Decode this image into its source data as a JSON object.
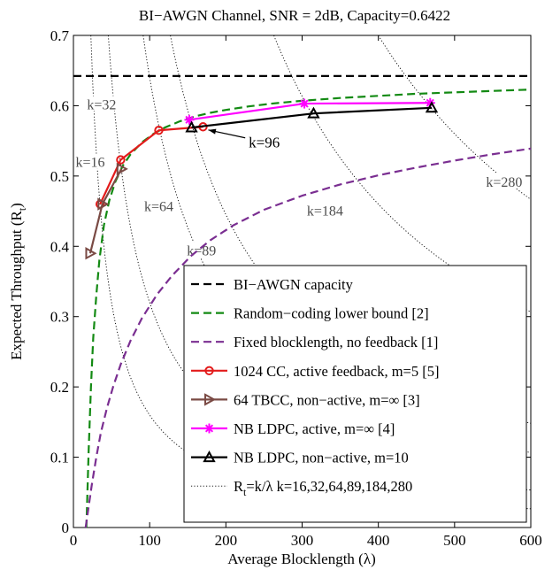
{
  "chart_data": {
    "type": "line",
    "title": "BI−AWGN Channel, SNR = 2dB, Capacity=0.6422",
    "xlabel": "Average Blocklength (λ)",
    "ylabel_main": "Expected Throughput (R",
    "ylabel_sub": "t",
    "ylabel_close": ")",
    "xlim": [
      0,
      600
    ],
    "ylim": [
      0,
      0.7
    ],
    "xticks": [
      0,
      100,
      200,
      300,
      400,
      500,
      600
    ],
    "yticks": [
      0,
      0.1,
      0.2,
      0.3,
      0.4,
      0.5,
      0.6,
      0.7
    ],
    "xtick_labels": [
      "0",
      "100",
      "200",
      "300",
      "400",
      "500",
      "600"
    ],
    "ytick_labels": [
      "0",
      "0.1",
      "0.2",
      "0.3",
      "0.4",
      "0.5",
      "0.6",
      "0.7"
    ],
    "grid": false,
    "legend_position": "bottom-right",
    "capacity": 0.6422,
    "k_curves": {
      "values": [
        16,
        32,
        64,
        89,
        184,
        280
      ],
      "labels": [
        {
          "text": "k=16",
          "x": 22,
          "y": 0.518
        },
        {
          "text": "k=32",
          "x": 37,
          "y": 0.6
        },
        {
          "text": "k=64",
          "x": 112,
          "y": 0.455
        },
        {
          "text": "k=89",
          "x": 168,
          "y": 0.392
        },
        {
          "text": "k=184",
          "x": 330,
          "y": 0.449
        },
        {
          "text": "k=280",
          "x": 565,
          "y": 0.49
        }
      ]
    },
    "series": [
      {
        "name": "BI−AWGN capacity",
        "style": "dashed",
        "color": "#000000",
        "width": 2.2,
        "x": [
          0,
          600
        ],
        "y": [
          0.6422,
          0.6422
        ]
      },
      {
        "name": "Random−coding lower bound [2]",
        "style": "dashed",
        "color": "#138a13",
        "width": 2.2,
        "x": [
          17,
          20,
          23,
          26,
          30,
          34,
          40,
          47,
          55,
          65,
          75,
          90,
          105,
          120,
          140,
          160,
          180,
          200,
          230,
          260,
          300,
          350,
          400,
          450,
          500,
          550,
          600
        ],
        "y": [
          0.0,
          0.11,
          0.2,
          0.27,
          0.33,
          0.38,
          0.43,
          0.465,
          0.492,
          0.515,
          0.531,
          0.548,
          0.56,
          0.569,
          0.578,
          0.585,
          0.59,
          0.594,
          0.599,
          0.603,
          0.607,
          0.611,
          0.614,
          0.617,
          0.619,
          0.621,
          0.623
        ]
      },
      {
        "name": "Fixed blocklength, no feedback [1]",
        "style": "dashed",
        "color": "#7a2e91",
        "width": 2.2,
        "x": [
          16,
          20,
          24,
          30,
          36,
          44,
          52,
          62,
          75,
          90,
          110,
          130,
          155,
          180,
          210,
          250,
          300,
          350,
          400,
          450,
          500,
          550,
          600
        ],
        "y": [
          0.0,
          0.03,
          0.06,
          0.1,
          0.135,
          0.17,
          0.2,
          0.232,
          0.266,
          0.298,
          0.332,
          0.359,
          0.387,
          0.409,
          0.43,
          0.452,
          0.472,
          0.488,
          0.501,
          0.512,
          0.522,
          0.531,
          0.539
        ]
      },
      {
        "name": "1024 CC, active feedback, m=5 [5]",
        "style": "solid",
        "color": "#e31b1b",
        "width": 2.2,
        "marker": "circle",
        "x": [
          35,
          62,
          112,
          170
        ],
        "y": [
          0.46,
          0.523,
          0.565,
          0.57
        ]
      },
      {
        "name": "64 TBCC, non−active, m=∞ [3]",
        "style": "solid",
        "color": "#7a4a44",
        "width": 2.2,
        "marker": "triangle-right",
        "x": [
          22,
          38,
          63
        ],
        "y": [
          0.39,
          0.46,
          0.51
        ]
      },
      {
        "name": "NB LDPC, active, m=∞ [4]",
        "style": "solid",
        "color": "#ff00ff",
        "width": 2.2,
        "marker": "asterisk",
        "x": [
          152,
          303,
          468
        ],
        "y": [
          0.58,
          0.603,
          0.604
        ]
      },
      {
        "name": "NB LDPC, non−active, m=10",
        "style": "solid",
        "color": "#000000",
        "width": 2.2,
        "marker": "triangle-up",
        "x": [
          155,
          315,
          470
        ],
        "y": [
          0.569,
          0.589,
          0.597
        ]
      }
    ],
    "legend_last_main": "R",
    "legend_last_sub": "t",
    "legend_last_rest": "=k/λ   k=16,32,64,89,184,280",
    "annotation": {
      "text": "k=96",
      "from_x": 230,
      "from_y": 0.548,
      "to_x": 170,
      "to_y": 0.568
    }
  }
}
